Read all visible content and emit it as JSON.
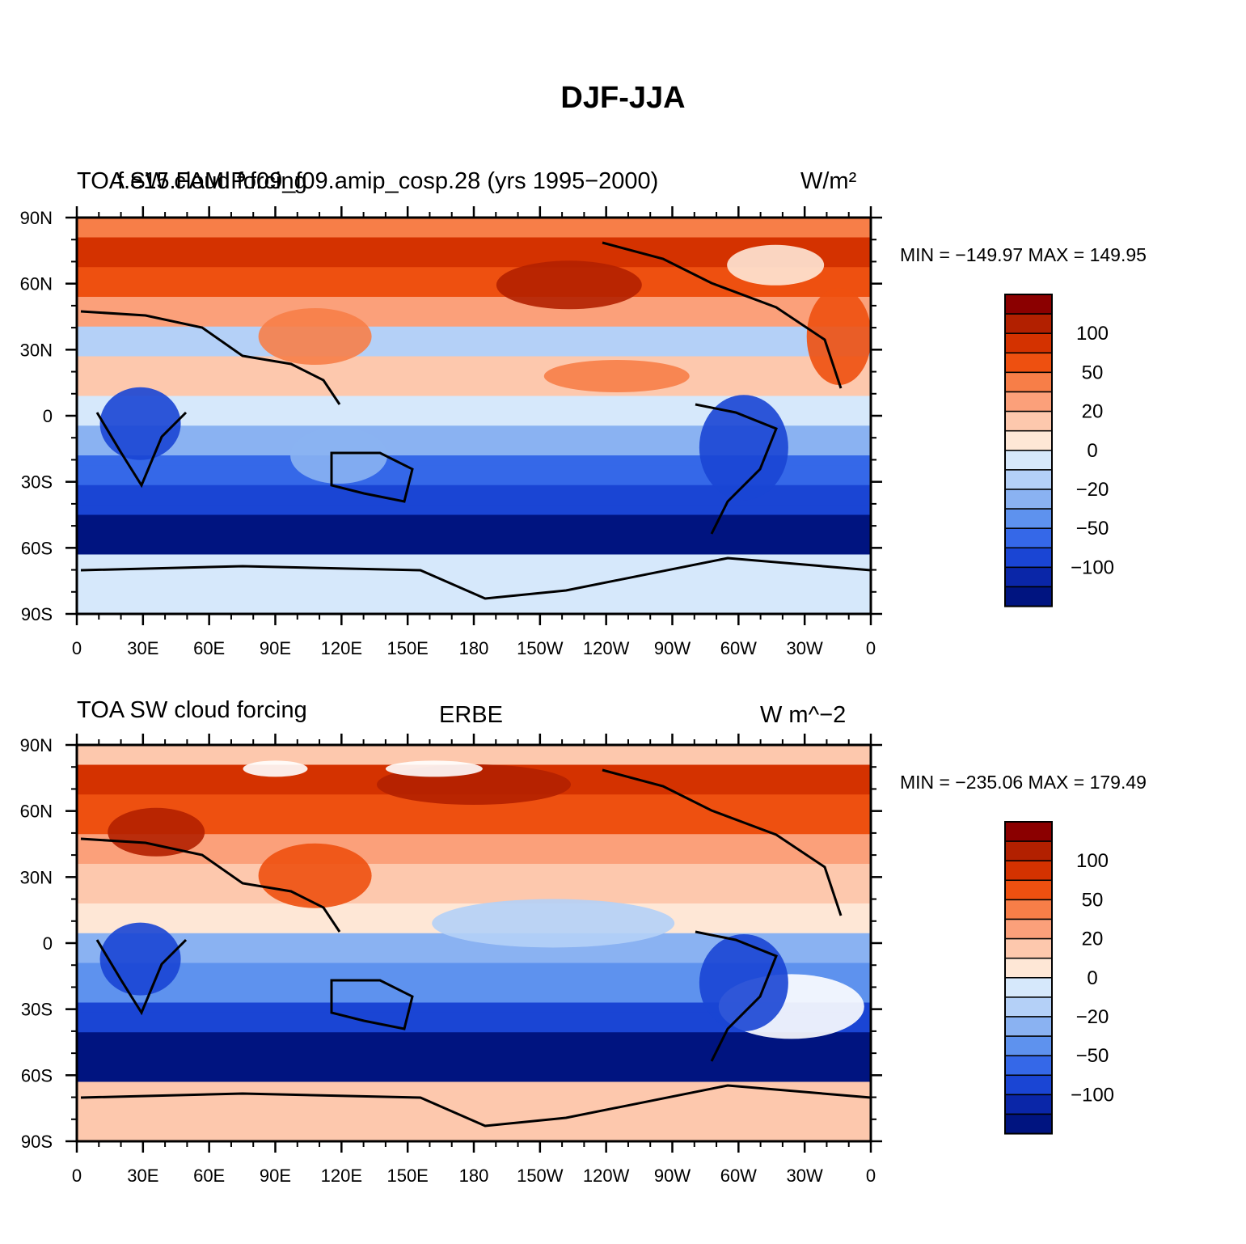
{
  "title": "DJF-JJA",
  "lat_labels": [
    "90N",
    "60N",
    "30N",
    "0",
    "30S",
    "60S",
    "90S"
  ],
  "lon_labels": [
    "0",
    "30E",
    "60E",
    "90E",
    "120E",
    "150E",
    "180",
    "150W",
    "120W",
    "90W",
    "60W",
    "30W",
    "0"
  ],
  "colorbar_labels": [
    "100",
    "50",
    "20",
    "0",
    "−20",
    "−50",
    "−100"
  ],
  "colors": {
    "warm": [
      "#8b0000",
      "#b22000",
      "#d43200",
      "#ee5010",
      "#f77e48",
      "#fba07a",
      "#fdc8ad",
      "#fee7d6"
    ],
    "cool": [
      "#d6e8fb",
      "#b4d0f7",
      "#8ab2f2",
      "#5e92ee",
      "#3568e8",
      "#1a45d4",
      "#0a26a8",
      "#001480"
    ]
  },
  "panels": [
    {
      "left_title": "TOA SW cloud forcing",
      "center_title": "f.e15.FAMIP.f09_f09.amip_cosp.28 (yrs 1995−2000)",
      "units": "W/m²",
      "min_max": "MIN = −149.97  MAX = 149.95"
    },
    {
      "left_title": "TOA SW cloud forcing",
      "center_title": "ERBE",
      "units": "W m^−2",
      "min_max": "MIN = −235.06  MAX = 179.49"
    }
  ]
}
